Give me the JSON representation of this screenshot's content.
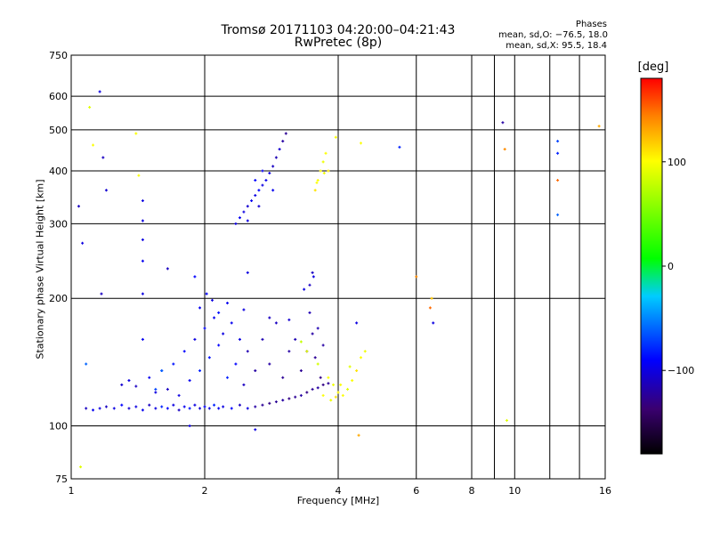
{
  "title": "Tromsø 20171103 04:20:00–04:21:43",
  "subtitle": "RwPretec (8p)",
  "phase_box": {
    "heading": "Phases",
    "o_line": "mean, sd,O: −76.5, 18.0",
    "x_line": "mean, sd,X:  95.5, 18.4"
  },
  "colorbar": {
    "unit": "[deg]",
    "ticks": [
      100,
      0,
      -100
    ],
    "tick_labels": [
      "100",
      "0",
      "−100"
    ],
    "range": [
      -180,
      180
    ]
  },
  "chart_data": {
    "type": "scatter",
    "title": "Tromsø 20171103 04:20:00–04:21:43",
    "subtitle": "RwPretec (8p)",
    "xlabel": "Frequency [MHz]",
    "ylabel": "Stationary phase Virtual Height [km]",
    "x_scale": "log",
    "y_scale": "log",
    "xlim": [
      1,
      16
    ],
    "ylim": [
      75,
      750
    ],
    "xticks": [
      1,
      2,
      4,
      6,
      8,
      10,
      16
    ],
    "xtick_labels": [
      "1",
      "2",
      "4",
      "6",
      "8",
      "10",
      "16"
    ],
    "yticks": [
      75,
      100,
      200,
      300,
      400,
      500,
      600,
      750
    ],
    "ytick_labels": [
      "75",
      "100",
      "200",
      "300",
      "400",
      "500",
      "600",
      "750"
    ],
    "x_gridlines": [
      2,
      4,
      6,
      8,
      9,
      10,
      12,
      14
    ],
    "grid": true,
    "color_by": "phase [deg]",
    "points": [
      [
        1.08,
        110,
        -110
      ],
      [
        1.12,
        109,
        -95
      ],
      [
        1.16,
        110,
        -100
      ],
      [
        1.2,
        111,
        -110
      ],
      [
        1.25,
        110,
        -100
      ],
      [
        1.3,
        112,
        -90
      ],
      [
        1.35,
        110,
        -105
      ],
      [
        1.4,
        111,
        -100
      ],
      [
        1.45,
        109,
        -95
      ],
      [
        1.5,
        112,
        -110
      ],
      [
        1.55,
        110,
        -100
      ],
      [
        1.6,
        111,
        -80
      ],
      [
        1.65,
        110,
        -90
      ],
      [
        1.7,
        112,
        -100
      ],
      [
        1.75,
        109,
        -110
      ],
      [
        1.8,
        111,
        -95
      ],
      [
        1.85,
        110,
        -85
      ],
      [
        1.9,
        112,
        -100
      ],
      [
        1.95,
        110,
        -105
      ],
      [
        2.0,
        111,
        -90
      ],
      [
        2.05,
        110,
        -100
      ],
      [
        2.1,
        112,
        -80
      ],
      [
        2.15,
        110,
        -95
      ],
      [
        2.2,
        111,
        -100
      ],
      [
        2.3,
        110,
        -90
      ],
      [
        2.4,
        112,
        -110
      ],
      [
        2.5,
        110,
        -100
      ],
      [
        2.6,
        111,
        -120
      ],
      [
        2.7,
        112,
        -125
      ],
      [
        2.8,
        113,
        -130
      ],
      [
        2.9,
        114,
        -125
      ],
      [
        3.0,
        115,
        -120
      ],
      [
        3.1,
        116,
        -130
      ],
      [
        3.2,
        117,
        -125
      ],
      [
        3.3,
        118,
        -120
      ],
      [
        3.4,
        120,
        -130
      ],
      [
        3.5,
        122,
        -125
      ],
      [
        3.6,
        123,
        -120
      ],
      [
        3.7,
        125,
        -130
      ],
      [
        3.8,
        126,
        -125
      ],
      [
        1.3,
        125,
        -105
      ],
      [
        1.35,
        128,
        -100
      ],
      [
        1.4,
        124,
        -110
      ],
      [
        1.5,
        130,
        -95
      ],
      [
        1.55,
        120,
        -100
      ],
      [
        1.6,
        135,
        -90
      ],
      [
        1.65,
        122,
        -110
      ],
      [
        1.7,
        140,
        -85
      ],
      [
        1.75,
        118,
        -100
      ],
      [
        1.8,
        150,
        -90
      ],
      [
        1.85,
        128,
        -95
      ],
      [
        1.9,
        160,
        -100
      ],
      [
        1.95,
        135,
        -80
      ],
      [
        2.0,
        170,
        -90
      ],
      [
        2.05,
        145,
        -85
      ],
      [
        2.1,
        180,
        -95
      ],
      [
        2.15,
        155,
        -90
      ],
      [
        2.2,
        165,
        -100
      ],
      [
        2.25,
        130,
        -80
      ],
      [
        2.3,
        175,
        -95
      ],
      [
        2.35,
        140,
        -90
      ],
      [
        2.4,
        160,
        -100
      ],
      [
        2.45,
        125,
        -110
      ],
      [
        2.5,
        150,
        -115
      ],
      [
        2.6,
        135,
        -120
      ],
      [
        2.7,
        160,
        -115
      ],
      [
        2.8,
        140,
        -120
      ],
      [
        2.9,
        175,
        -110
      ],
      [
        3.0,
        130,
        -125
      ],
      [
        3.1,
        150,
        -120
      ],
      [
        3.2,
        160,
        -115
      ],
      [
        3.3,
        135,
        -125
      ],
      [
        3.4,
        150,
        -130
      ],
      [
        3.5,
        165,
        -120
      ],
      [
        3.55,
        145,
        -125
      ],
      [
        3.6,
        170,
        -115
      ],
      [
        3.65,
        130,
        -130
      ],
      [
        3.7,
        155,
        -120
      ],
      [
        1.95,
        190,
        -95
      ],
      [
        2.02,
        205,
        -90
      ],
      [
        2.08,
        198,
        -100
      ],
      [
        2.15,
        185,
        -85
      ],
      [
        2.25,
        195,
        -95
      ],
      [
        2.45,
        188,
        -100
      ],
      [
        2.8,
        180,
        -110
      ],
      [
        3.1,
        178,
        -105
      ],
      [
        3.45,
        185,
        -115
      ],
      [
        3.5,
        230,
        -110
      ],
      [
        3.52,
        225,
        -100
      ],
      [
        2.5,
        230,
        -100
      ],
      [
        1.9,
        225,
        -90
      ],
      [
        3.3,
        158,
        80
      ],
      [
        3.4,
        150,
        90
      ],
      [
        3.6,
        140,
        85
      ],
      [
        3.8,
        130,
        100
      ],
      [
        3.9,
        125,
        95
      ],
      [
        4.0,
        120,
        105
      ],
      [
        4.1,
        118,
        100
      ],
      [
        4.2,
        122,
        90
      ],
      [
        4.3,
        128,
        100
      ],
      [
        4.4,
        135,
        110
      ],
      [
        4.5,
        145,
        100
      ],
      [
        4.6,
        150,
        95
      ],
      [
        3.7,
        118,
        100
      ],
      [
        3.85,
        115,
        95
      ],
      [
        3.95,
        117,
        110
      ],
      [
        4.05,
        125,
        100
      ],
      [
        4.25,
        138,
        90
      ],
      [
        2.35,
        300,
        -100
      ],
      [
        2.4,
        310,
        -95
      ],
      [
        2.45,
        320,
        -100
      ],
      [
        2.5,
        330,
        -105
      ],
      [
        2.55,
        340,
        -95
      ],
      [
        2.6,
        350,
        -100
      ],
      [
        2.65,
        360,
        -90
      ],
      [
        2.7,
        370,
        -100
      ],
      [
        2.75,
        380,
        -95
      ],
      [
        2.8,
        395,
        -100
      ],
      [
        2.85,
        410,
        -110
      ],
      [
        2.9,
        430,
        -115
      ],
      [
        2.95,
        450,
        -105
      ],
      [
        3.0,
        470,
        -120
      ],
      [
        3.05,
        490,
        -125
      ],
      [
        2.6,
        380,
        -90
      ],
      [
        2.7,
        400,
        -95
      ],
      [
        2.5,
        305,
        -100
      ],
      [
        2.65,
        330,
        -105
      ],
      [
        2.85,
        360,
        -95
      ],
      [
        3.55,
        360,
        110
      ],
      [
        3.6,
        380,
        100
      ],
      [
        3.65,
        400,
        105
      ],
      [
        3.7,
        420,
        95
      ],
      [
        3.75,
        440,
        100
      ],
      [
        3.8,
        400,
        110
      ],
      [
        3.58,
        375,
        100
      ],
      [
        3.72,
        395,
        95
      ],
      [
        1.04,
        330,
        -110
      ],
      [
        1.06,
        270,
        -100
      ],
      [
        1.1,
        565,
        90
      ],
      [
        1.12,
        460,
        100
      ],
      [
        1.16,
        615,
        -100
      ],
      [
        1.18,
        430,
        -110
      ],
      [
        1.2,
        360,
        -105
      ],
      [
        1.17,
        205,
        -110
      ],
      [
        1.4,
        490,
        100
      ],
      [
        1.42,
        390,
        100
      ],
      [
        1.45,
        340,
        -100
      ],
      [
        1.45,
        305,
        -100
      ],
      [
        1.45,
        275,
        -100
      ],
      [
        1.45,
        245,
        -95
      ],
      [
        1.45,
        205,
        -100
      ],
      [
        1.45,
        160,
        -95
      ],
      [
        1.55,
        122,
        -70
      ],
      [
        1.6,
        135,
        -60
      ],
      [
        1.05,
        80,
        90
      ],
      [
        1.08,
        140,
        -60
      ],
      [
        1.65,
        235,
        -110
      ],
      [
        1.85,
        100,
        -100
      ],
      [
        2.6,
        98,
        -100
      ],
      [
        3.35,
        210,
        -100
      ],
      [
        3.45,
        215,
        -110
      ],
      [
        3.95,
        480,
        100
      ],
      [
        4.5,
        465,
        100
      ],
      [
        4.45,
        95,
        130
      ],
      [
        4.4,
        175,
        -100
      ],
      [
        5.5,
        455,
        -80
      ],
      [
        6.0,
        225,
        140
      ],
      [
        6.5,
        200,
        120
      ],
      [
        6.45,
        190,
        150
      ],
      [
        6.55,
        175,
        -100
      ],
      [
        9.4,
        520,
        -120
      ],
      [
        9.5,
        450,
        140
      ],
      [
        9.6,
        103,
        90
      ],
      [
        12.5,
        470,
        -70
      ],
      [
        12.5,
        440,
        -80
      ],
      [
        12.5,
        380,
        150
      ],
      [
        12.5,
        315,
        -60
      ],
      [
        15.5,
        510,
        130
      ]
    ]
  }
}
